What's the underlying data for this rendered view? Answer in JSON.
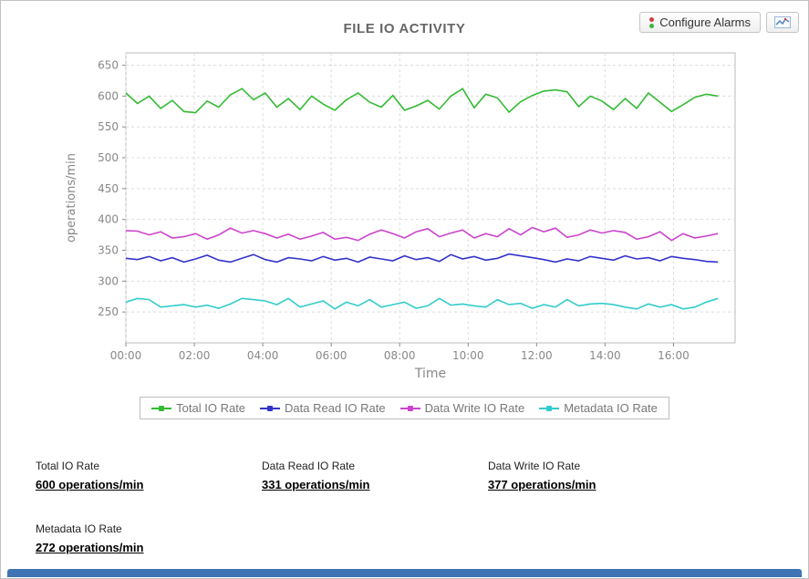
{
  "toolbar": {
    "configure_alarms_label": "Configure Alarms",
    "alarm_icon_colors": {
      "top": "#d93a3a",
      "bottom": "#3db53d"
    },
    "graph_icon_color": "#4a7ebb"
  },
  "chart_data": {
    "type": "line",
    "title": "FILE IO ACTIVITY",
    "xlabel": "Time",
    "ylabel": "operations/min",
    "ylim": [
      200,
      670
    ],
    "yticks": [
      250,
      300,
      350,
      400,
      450,
      500,
      550,
      600,
      650
    ],
    "xlim_hours": [
      0,
      17.8
    ],
    "x_end_hours": 17.3,
    "xticks": [
      {
        "hour": 0,
        "label": "00:00"
      },
      {
        "hour": 2,
        "label": "02:00"
      },
      {
        "hour": 4,
        "label": "04:00"
      },
      {
        "hour": 6,
        "label": "06:00"
      },
      {
        "hour": 8,
        "label": "08:00"
      },
      {
        "hour": 10,
        "label": "10:00"
      },
      {
        "hour": 12,
        "label": "12:00"
      },
      {
        "hour": 14,
        "label": "14:00"
      },
      {
        "hour": 16,
        "label": "16:00"
      }
    ],
    "grid": true,
    "legend_position": "bottom",
    "series": [
      {
        "name": "Total IO Rate",
        "color": "#33bb33",
        "values": [
          605,
          588,
          600,
          580,
          593,
          575,
          573,
          592,
          582,
          602,
          612,
          594,
          605,
          582,
          596,
          578,
          600,
          587,
          577,
          594,
          605,
          590,
          582,
          601,
          577,
          584,
          593,
          579,
          600,
          612,
          581,
          603,
          597,
          574,
          591,
          601,
          608,
          610,
          607,
          583,
          600,
          592,
          578,
          596,
          580,
          605,
          590,
          575,
          586,
          598,
          603,
          600
        ]
      },
      {
        "name": "Data Read IO Rate",
        "color": "#3333cc",
        "values": [
          337,
          335,
          340,
          333,
          338,
          331,
          336,
          342,
          334,
          331,
          337,
          343,
          335,
          331,
          338,
          336,
          333,
          340,
          334,
          337,
          331,
          339,
          336,
          333,
          341,
          335,
          338,
          332,
          343,
          336,
          340,
          334,
          337,
          344,
          341,
          338,
          335,
          331,
          336,
          333,
          340,
          337,
          334,
          341,
          336,
          338,
          333,
          340,
          337,
          335,
          332,
          331
        ]
      },
      {
        "name": "Data Write IO Rate",
        "color": "#cc44cc",
        "values": [
          382,
          381,
          375,
          380,
          370,
          372,
          377,
          368,
          375,
          386,
          378,
          382,
          377,
          370,
          376,
          368,
          373,
          379,
          368,
          371,
          366,
          376,
          383,
          377,
          370,
          380,
          385,
          372,
          378,
          383,
          370,
          377,
          372,
          385,
          375,
          387,
          380,
          386,
          371,
          375,
          383,
          378,
          382,
          379,
          368,
          372,
          380,
          366,
          377,
          370,
          373,
          377
        ]
      },
      {
        "name": "Metadata IO Rate",
        "color": "#33cccc",
        "values": [
          266,
          272,
          270,
          258,
          260,
          262,
          258,
          261,
          256,
          263,
          272,
          270,
          268,
          262,
          272,
          258,
          263,
          268,
          255,
          266,
          260,
          270,
          258,
          262,
          266,
          256,
          260,
          272,
          261,
          263,
          260,
          258,
          270,
          262,
          264,
          256,
          262,
          258,
          270,
          260,
          263,
          264,
          262,
          258,
          255,
          263,
          258,
          262,
          255,
          258,
          266,
          272
        ]
      }
    ]
  },
  "stats": {
    "items": [
      {
        "label": "Total IO Rate",
        "value": "600 operations/min"
      },
      {
        "label": "Data Read IO Rate",
        "value": "331 operations/min"
      },
      {
        "label": "Data Write IO Rate",
        "value": "377 operations/min"
      },
      {
        "label": "Metadata IO Rate",
        "value": "272 operations/min"
      }
    ]
  },
  "colors": {
    "footer_bar": "#3e74b4",
    "grid_line": "#dcdcdc",
    "axis_text": "#888888",
    "plot_border": "#bbbbbb",
    "title_text": "#666666"
  }
}
